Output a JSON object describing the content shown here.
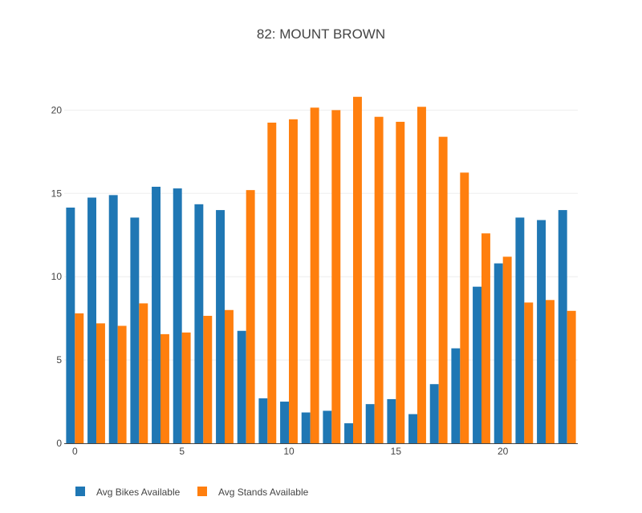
{
  "colors": {
    "series_bikes": "#1f77b4",
    "series_stands": "#ff7f0e",
    "grid": "#eeeeee",
    "axis": "#444444",
    "text": "#444444"
  },
  "chart_data": {
    "type": "bar",
    "title": "82: MOUNT BROWN",
    "xlabel": "",
    "ylabel": "",
    "x": [
      0,
      1,
      2,
      3,
      4,
      5,
      6,
      7,
      8,
      9,
      10,
      11,
      12,
      13,
      14,
      15,
      16,
      17,
      18,
      19,
      20,
      21,
      22,
      23
    ],
    "xlim": [
      -0.5,
      23.5
    ],
    "ylim": [
      0,
      21.8
    ],
    "x_ticks": [
      0,
      5,
      10,
      15,
      20
    ],
    "y_ticks": [
      0,
      5,
      10,
      15,
      20
    ],
    "grid": "horizontal",
    "barmode": "group",
    "legend": "bottom-left, horizontal",
    "series": [
      {
        "name": "Avg Bikes Available",
        "color": "#1f77b4",
        "values": [
          14.15,
          14.75,
          14.9,
          13.55,
          15.4,
          15.3,
          14.35,
          14.0,
          6.75,
          2.7,
          2.5,
          1.85,
          1.95,
          1.2,
          2.35,
          2.65,
          1.75,
          3.55,
          5.7,
          9.4,
          10.8,
          13.55,
          13.4,
          14.0
        ]
      },
      {
        "name": "Avg Stands Available",
        "color": "#ff7f0e",
        "values": [
          7.8,
          7.2,
          7.05,
          8.4,
          6.55,
          6.65,
          7.65,
          8.0,
          15.2,
          19.25,
          19.45,
          20.15,
          20.0,
          20.8,
          19.6,
          19.3,
          20.2,
          18.4,
          16.25,
          12.6,
          11.2,
          8.45,
          8.6,
          7.95
        ]
      }
    ]
  }
}
